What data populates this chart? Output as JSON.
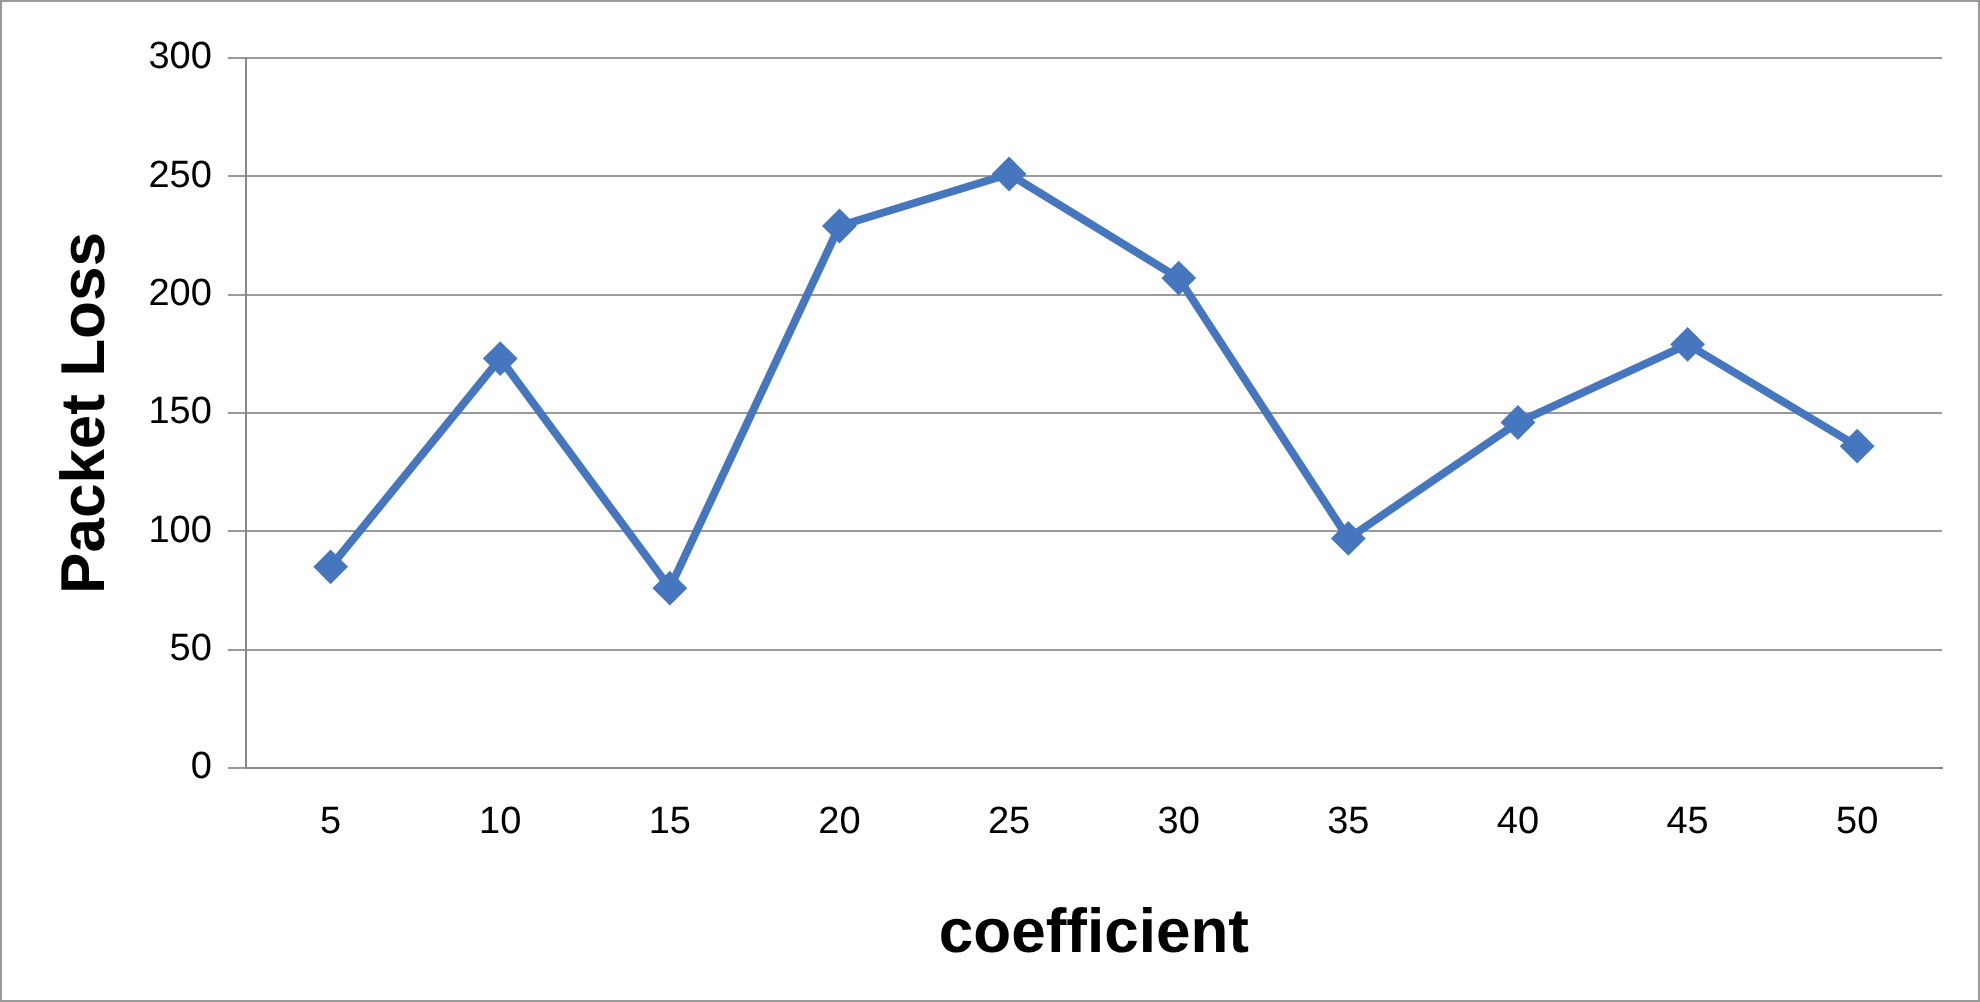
{
  "chart_data": {
    "type": "line",
    "xlabel": "coefficient",
    "ylabel": "Packet Loss",
    "categories": [
      "5",
      "10",
      "15",
      "20",
      "25",
      "30",
      "35",
      "40",
      "45",
      "50"
    ],
    "series": [
      {
        "color": "#4677be",
        "values": [
          85,
          173,
          76,
          229,
          251,
          207,
          97,
          146,
          179,
          136
        ]
      }
    ],
    "ylim": [
      0,
      300
    ],
    "yticks": [
      0,
      50,
      100,
      150,
      200,
      250,
      300
    ],
    "grid": "y",
    "marker": "diamond",
    "line_style": "solid",
    "legend": false
  }
}
